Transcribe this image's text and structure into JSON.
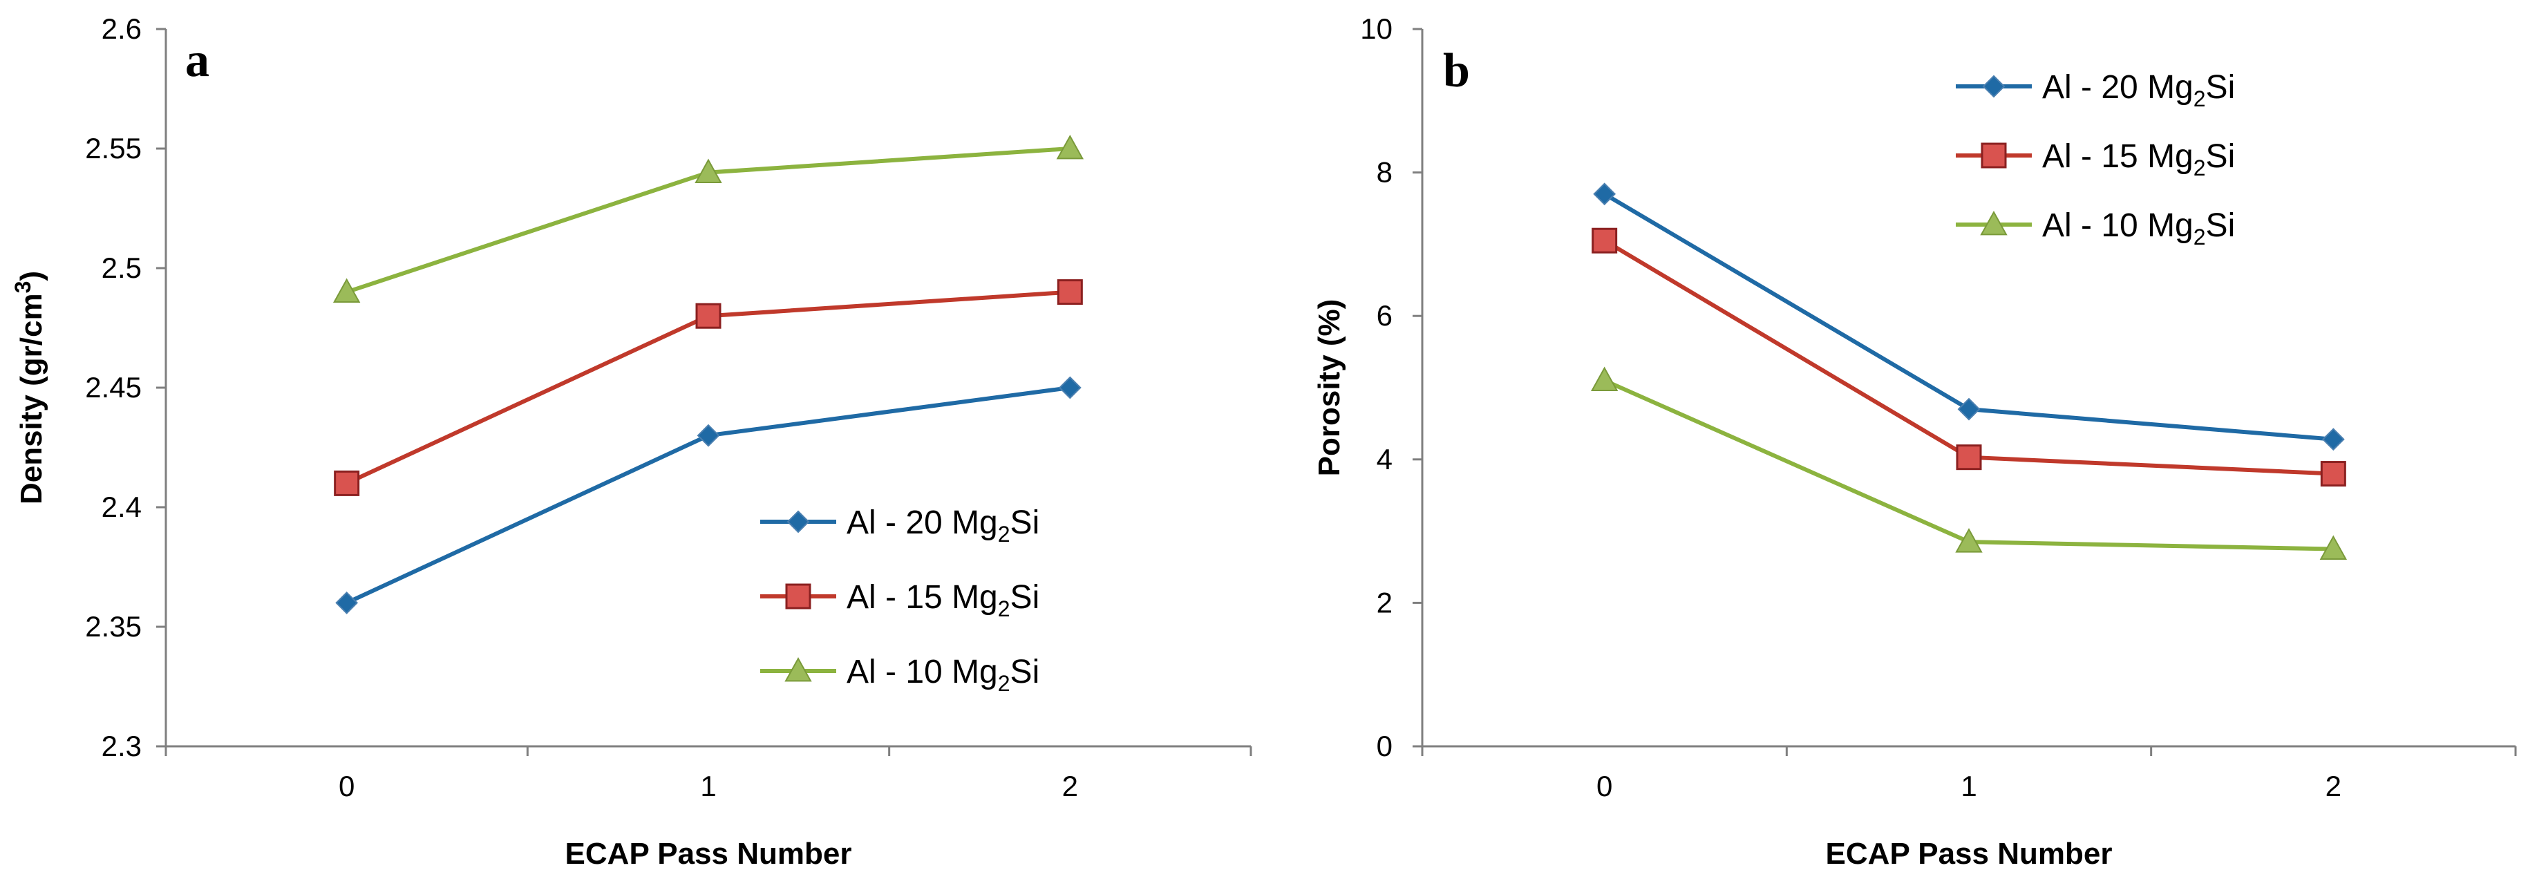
{
  "chart_data": [
    {
      "type": "line",
      "panel_label": "a",
      "categories": [
        "0",
        "1",
        "2"
      ],
      "xlabel": "ECAP Pass Number",
      "ylabel_main": "Density (gr/cm",
      "ylabel_sup": "3",
      "ylabel_end": ")",
      "ylim": [
        2.3,
        2.6
      ],
      "yticks": [
        2.3,
        2.35,
        2.4,
        2.45,
        2.5,
        2.55,
        2.6
      ],
      "ytick_labels": [
        "2.3",
        "2.35",
        "2.4",
        "2.45",
        "2.5",
        "2.55",
        "2.6"
      ],
      "grid": false,
      "legend_position": "lower-right",
      "series": [
        {
          "name": "Al - 20  Mg2Si",
          "label_main": "Al - 20  Mg",
          "label_sub": "2",
          "label_end": "Si",
          "color": "#1f6aa5",
          "marker": "diamond",
          "values": [
            2.36,
            2.43,
            2.45
          ]
        },
        {
          "name": "Al - 15  Mg2Si",
          "label_main": "Al - 15  Mg",
          "label_sub": "2",
          "label_end": "Si",
          "color": "#c0392b",
          "marker": "square",
          "values": [
            2.41,
            2.48,
            2.49
          ]
        },
        {
          "name": "Al - 10  Mg2Si",
          "label_main": "Al - 10  Mg",
          "label_sub": "2",
          "label_end": "Si",
          "color": "#8cb33f",
          "marker": "triangle",
          "values": [
            2.49,
            2.54,
            2.55
          ]
        }
      ]
    },
    {
      "type": "line",
      "panel_label": "b",
      "categories": [
        "0",
        "1",
        "2"
      ],
      "xlabel": "ECAP Pass Number",
      "ylabel_main": "Porosity  (%)",
      "ylabel_sup": "",
      "ylabel_end": "",
      "ylim": [
        0,
        10
      ],
      "yticks": [
        0,
        2,
        4,
        6,
        8,
        10
      ],
      "ytick_labels": [
        "0",
        "2",
        "4",
        "6",
        "8",
        "10"
      ],
      "grid": false,
      "legend_position": "top-center",
      "series": [
        {
          "name": "Al - 20  Mg2Si",
          "label_main": "Al - 20  Mg",
          "label_sub": "2",
          "label_end": "Si",
          "color": "#1f6aa5",
          "marker": "diamond",
          "values": [
            7.7,
            4.7,
            4.28
          ]
        },
        {
          "name": "Al - 15  Mg2Si",
          "label_main": "Al - 15  Mg",
          "label_sub": "2",
          "label_end": "Si",
          "color": "#c0392b",
          "marker": "square",
          "values": [
            7.05,
            4.03,
            3.8
          ]
        },
        {
          "name": "Al - 10  Mg2Si",
          "label_main": "Al - 10  Mg",
          "label_sub": "2",
          "label_end": "Si",
          "color": "#8cb33f",
          "marker": "triangle",
          "values": [
            5.1,
            2.85,
            2.75
          ]
        }
      ]
    }
  ]
}
